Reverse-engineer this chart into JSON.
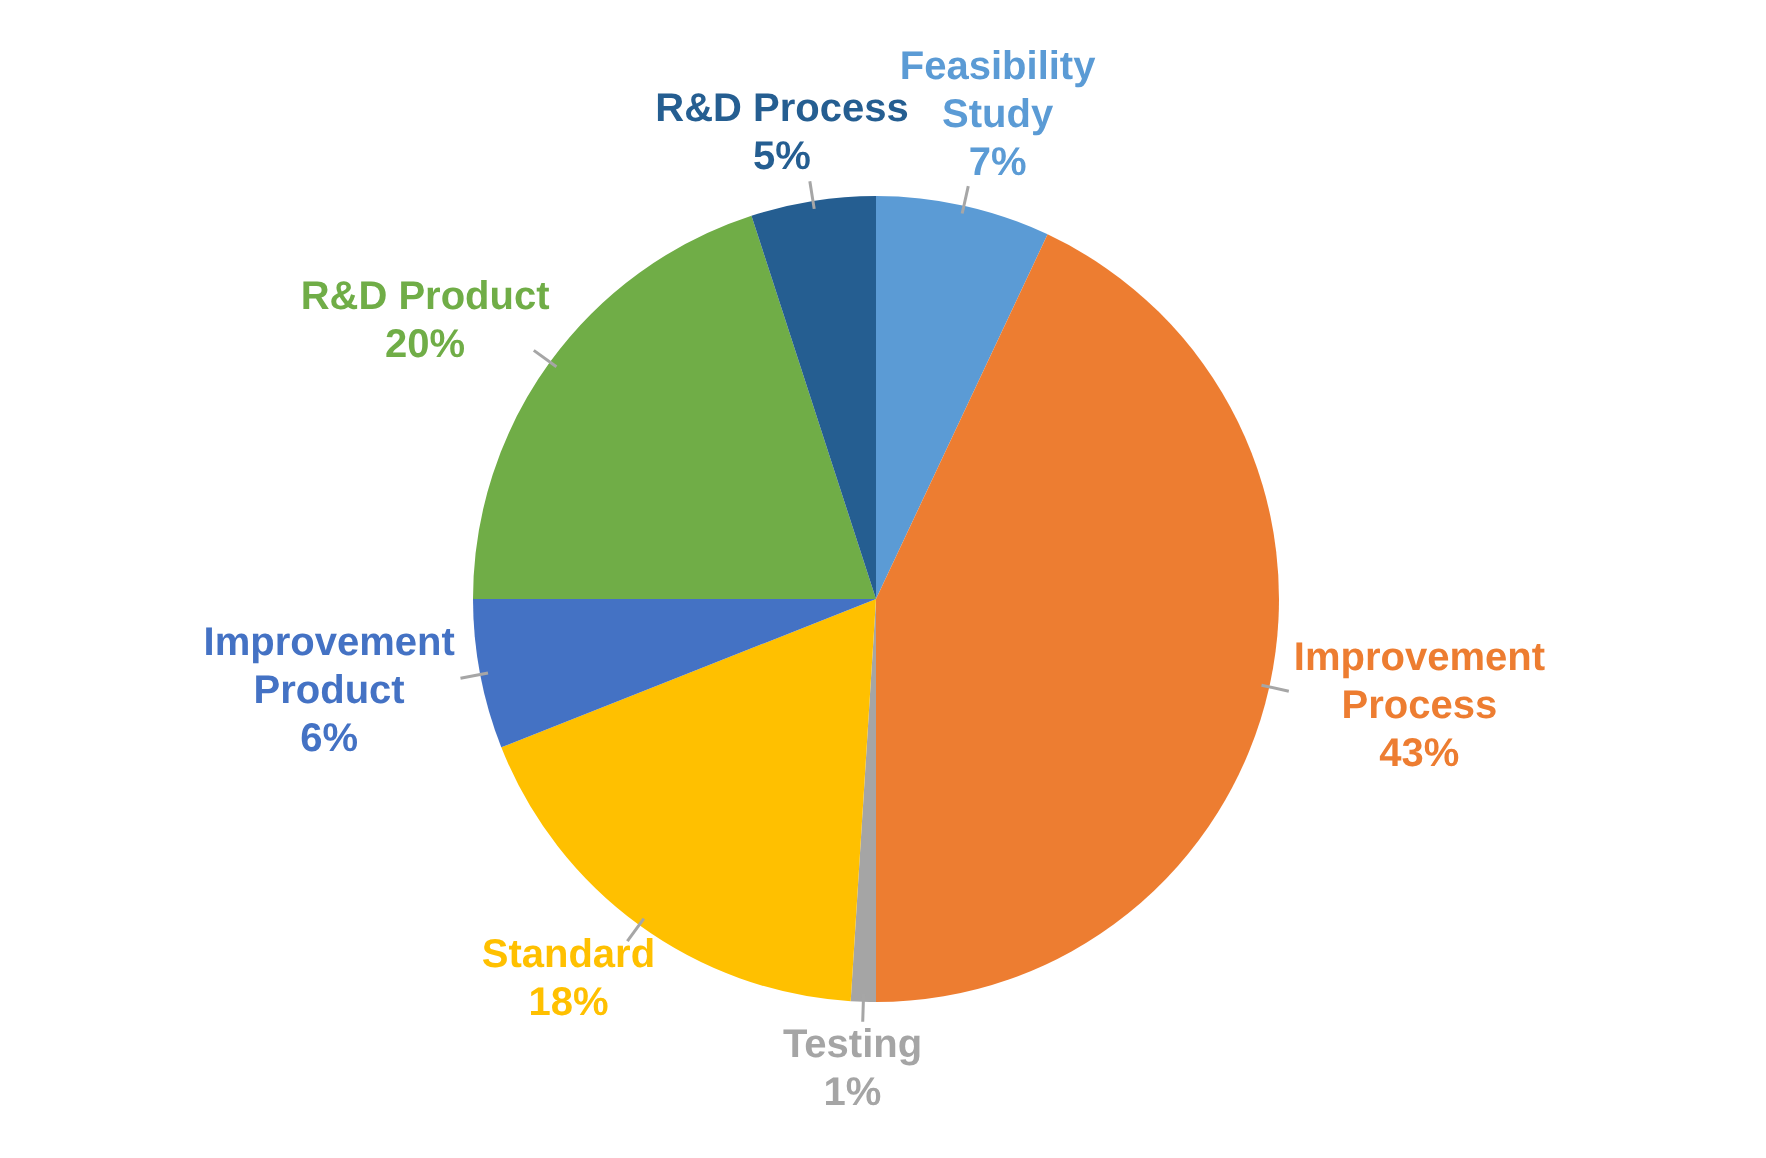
{
  "chart_data": {
    "type": "pie",
    "categories": [
      "Feasibility Study",
      "Improvement Process",
      "Testing",
      "Standard",
      "Improvement Product",
      "R&D Product",
      "R&D Process"
    ],
    "values": [
      7,
      43,
      1,
      18,
      6,
      20,
      5
    ],
    "value_labels": [
      "7%",
      "43%",
      "1%",
      "18%",
      "6%",
      "20%",
      "5%"
    ],
    "colors": [
      "#5b9bd5",
      "#ed7d31",
      "#a5a5a5",
      "#ffc000",
      "#4472c4",
      "#70ad47",
      "#255e91"
    ],
    "legend": false
  }
}
